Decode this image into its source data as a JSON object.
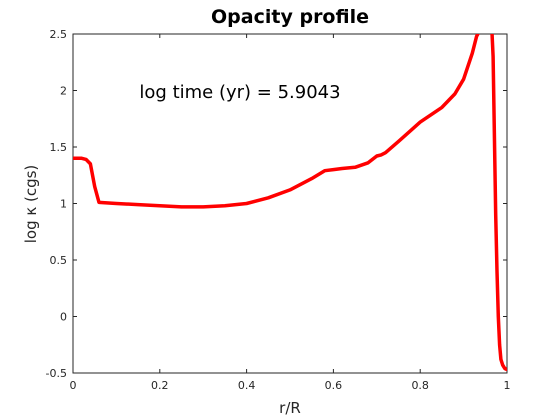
{
  "chart_data": {
    "type": "line",
    "title": "Opacity profile",
    "xlabel": "r/R",
    "ylabel": "log κ (cgs)",
    "xlim": [
      0,
      1
    ],
    "ylim": [
      -0.5,
      2.5
    ],
    "x_ticks": [
      0,
      0.2,
      0.4,
      0.6,
      0.8,
      1
    ],
    "x_tick_labels": [
      "0",
      "0.2",
      "0.4",
      "0.6",
      "0.8",
      "1"
    ],
    "y_ticks": [
      -0.5,
      0,
      0.5,
      1,
      1.5,
      2,
      2.5
    ],
    "y_tick_labels": [
      "-0.5",
      "0",
      "0.5",
      "1",
      "1.5",
      "2",
      "2.5"
    ],
    "grid": false,
    "annotation": "log time (yr) = 5.9043",
    "series": [
      {
        "color": "#ff0000",
        "x": [
          0,
          0.02,
          0.03,
          0.04,
          0.05,
          0.06,
          0.1,
          0.15,
          0.2,
          0.25,
          0.3,
          0.35,
          0.4,
          0.45,
          0.5,
          0.55,
          0.58,
          0.6,
          0.62,
          0.65,
          0.68,
          0.7,
          0.71,
          0.72,
          0.75,
          0.8,
          0.85,
          0.88,
          0.9,
          0.92,
          0.93,
          0.94
        ],
        "y": [
          1.4,
          1.4,
          1.39,
          1.35,
          1.15,
          1.01,
          1.0,
          0.99,
          0.98,
          0.97,
          0.97,
          0.98,
          1.0,
          1.05,
          1.12,
          1.22,
          1.29,
          1.3,
          1.31,
          1.32,
          1.36,
          1.42,
          1.43,
          1.45,
          1.55,
          1.72,
          1.85,
          1.97,
          2.1,
          2.33,
          2.48,
          2.55
        ]
      },
      {
        "color": "#ff0000",
        "x": [
          0.965,
          0.968,
          0.971,
          0.974,
          0.977,
          0.98,
          0.983,
          0.986,
          0.99,
          0.995,
          1.0
        ],
        "y": [
          2.55,
          2.3,
          1.6,
          0.9,
          0.4,
          0.0,
          -0.25,
          -0.38,
          -0.43,
          -0.46,
          -0.47
        ]
      }
    ]
  }
}
